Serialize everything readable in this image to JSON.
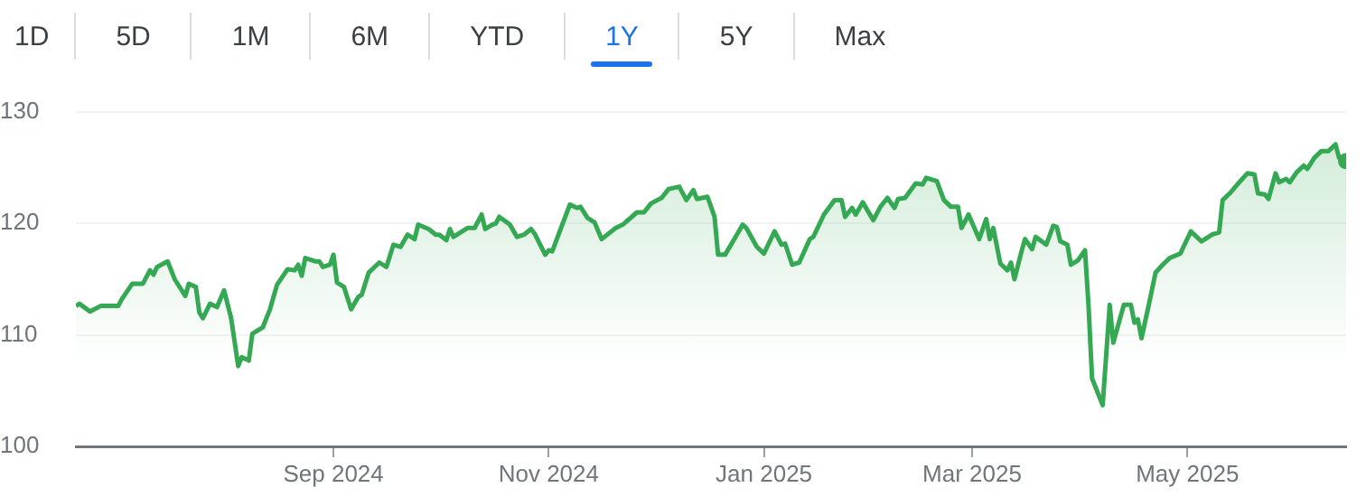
{
  "chart_data": {
    "type": "area",
    "annotations": [
      "1D",
      "5D",
      "1M",
      "6M",
      "YTD",
      "1Y",
      "5Y",
      "Max"
    ],
    "x": [
      "2024-06-20",
      "2024-06-21",
      "2024-06-24",
      "2024-06-27",
      "2024-06-30",
      "2024-07-02",
      "2024-07-03",
      "2024-07-06",
      "2024-07-09",
      "2024-07-11",
      "2024-07-12",
      "2024-07-13",
      "2024-07-16",
      "2024-07-18",
      "2024-07-21",
      "2024-07-22",
      "2024-07-24",
      "2024-07-25",
      "2024-07-26",
      "2024-07-28",
      "2024-07-30",
      "2024-08-01",
      "2024-08-03",
      "2024-08-05",
      "2024-08-06",
      "2024-08-08",
      "2024-08-09",
      "2024-08-12",
      "2024-08-14",
      "2024-08-16",
      "2024-08-19",
      "2024-08-21",
      "2024-08-22",
      "2024-08-23",
      "2024-08-24",
      "2024-08-27",
      "2024-08-28",
      "2024-08-29",
      "2024-08-31",
      "2024-09-01",
      "2024-09-02",
      "2024-09-04",
      "2024-09-06",
      "2024-09-08",
      "2024-09-09",
      "2024-09-11",
      "2024-09-14",
      "2024-09-16",
      "2024-09-18",
      "2024-09-20",
      "2024-09-22",
      "2024-09-24",
      "2024-09-25",
      "2024-09-28",
      "2024-09-30",
      "2024-10-01",
      "2024-10-03",
      "2024-10-04",
      "2024-10-05",
      "2024-10-09",
      "2024-10-11",
      "2024-10-13",
      "2024-10-14",
      "2024-10-16",
      "2024-10-17",
      "2024-10-18",
      "2024-10-21",
      "2024-10-23",
      "2024-10-25",
      "2024-10-27",
      "2024-10-28",
      "2024-10-31",
      "2024-11-01",
      "2024-11-02",
      "2024-11-07",
      "2024-11-09",
      "2024-11-10",
      "2024-11-12",
      "2024-11-14",
      "2024-11-16",
      "2024-11-20",
      "2024-11-22",
      "2024-11-26",
      "2024-11-28",
      "2024-11-30",
      "2024-12-03",
      "2024-12-05",
      "2024-12-08",
      "2024-12-10",
      "2024-12-12",
      "2024-12-13",
      "2024-12-16",
      "2024-12-18",
      "2024-12-19",
      "2024-12-21",
      "2024-12-26",
      "2024-12-27",
      "2024-12-30",
      "2025-01-01",
      "2025-01-04",
      "2025-01-06",
      "2025-01-07",
      "2025-01-09",
      "2025-01-11",
      "2025-01-14",
      "2025-01-15",
      "2025-01-18",
      "2025-01-21",
      "2025-01-23",
      "2025-01-24",
      "2025-01-26",
      "2025-01-27",
      "2025-01-29",
      "2025-02-01",
      "2025-02-03",
      "2025-02-05",
      "2025-02-07",
      "2025-02-08",
      "2025-02-10",
      "2025-02-13",
      "2025-02-15",
      "2025-02-16",
      "2025-02-19",
      "2025-02-21",
      "2025-02-23",
      "2025-02-25",
      "2025-02-26",
      "2025-02-28",
      "2025-03-03",
      "2025-03-05",
      "2025-03-06",
      "2025-03-07",
      "2025-03-09",
      "2025-03-11",
      "2025-03-12",
      "2025-03-13",
      "2025-03-15",
      "2025-03-16",
      "2025-03-18",
      "2025-03-19",
      "2025-03-22",
      "2025-03-24",
      "2025-03-25",
      "2025-03-26",
      "2025-03-28",
      "2025-03-29",
      "2025-03-31",
      "2025-04-02",
      "2025-04-03",
      "2025-04-04",
      "2025-04-07",
      "2025-04-09",
      "2025-04-10",
      "2025-04-13",
      "2025-04-15",
      "2025-04-16",
      "2025-04-17",
      "2025-04-18",
      "2025-04-20",
      "2025-04-22",
      "2025-04-24",
      "2025-04-26",
      "2025-04-29",
      "2025-05-02",
      "2025-05-05",
      "2025-05-08",
      "2025-05-10",
      "2025-05-11",
      "2025-05-13",
      "2025-05-16",
      "2025-05-18",
      "2025-05-20",
      "2025-05-21",
      "2025-05-23",
      "2025-05-24",
      "2025-05-26",
      "2025-05-27",
      "2025-05-29",
      "2025-05-30",
      "2025-06-01",
      "2025-06-03",
      "2025-06-04",
      "2025-06-06",
      "2025-06-08",
      "2025-06-10",
      "2025-06-12",
      "2025-06-13",
      "2025-06-15"
    ],
    "series": [
      {
        "color": "#34a853",
        "values": [
          112.6,
          112.8,
          112.1,
          112.6,
          112.6,
          112.6,
          113.2,
          114.6,
          114.6,
          115.8,
          115.4,
          116.1,
          116.6,
          115.0,
          113.5,
          114.6,
          114.3,
          112.0,
          111.5,
          112.8,
          112.5,
          114.0,
          111.5,
          107.2,
          108.0,
          107.7,
          110.1,
          110.7,
          112.3,
          114.5,
          115.9,
          115.8,
          116.3,
          115.3,
          116.9,
          116.6,
          116.6,
          116.1,
          116.3,
          117.2,
          114.7,
          114.3,
          112.3,
          113.4,
          113.6,
          115.6,
          116.5,
          116.1,
          118.1,
          117.9,
          119.0,
          118.6,
          119.9,
          119.5,
          119.0,
          119.0,
          118.5,
          119.5,
          118.8,
          119.6,
          119.6,
          120.8,
          119.5,
          119.9,
          120.0,
          120.6,
          119.9,
          118.8,
          119.0,
          119.5,
          119.1,
          117.2,
          117.6,
          117.5,
          121.7,
          121.4,
          121.5,
          120.5,
          120.1,
          118.6,
          119.6,
          119.9,
          121.0,
          121.0,
          121.8,
          122.3,
          123.1,
          123.3,
          122.1,
          123.0,
          122.2,
          122.4,
          120.6,
          117.2,
          117.2,
          119.9,
          119.6,
          117.9,
          117.3,
          119.3,
          118.1,
          118.2,
          116.3,
          116.5,
          118.6,
          118.8,
          120.8,
          122.1,
          122.1,
          120.6,
          121.4,
          120.8,
          121.9,
          120.3,
          121.5,
          122.3,
          121.4,
          122.2,
          122.3,
          123.6,
          123.5,
          124.1,
          123.8,
          122.1,
          121.5,
          121.5,
          119.6,
          120.8,
          118.6,
          120.4,
          118.6,
          119.6,
          116.4,
          115.8,
          116.5,
          115.0,
          117.5,
          118.6,
          117.7,
          118.8,
          118.1,
          119.8,
          119.7,
          118.4,
          118.1,
          116.3,
          116.7,
          117.6,
          112.6,
          106.1,
          103.7,
          112.7,
          109.3,
          112.7,
          112.7,
          111.1,
          111.4,
          109.7,
          112.6,
          115.6,
          116.3,
          116.9,
          117.3,
          119.3,
          118.4,
          119.0,
          119.2,
          122.1,
          122.7,
          123.8,
          124.5,
          124.4,
          122.7,
          122.6,
          122.2,
          124.5,
          123.7,
          124.0,
          123.7,
          124.6,
          125.2,
          124.9,
          125.9,
          126.5,
          126.5,
          127.1,
          125.9,
          125.6
        ]
      }
    ],
    "xlim": [
      "2024-06-20",
      "2025-06-15"
    ],
    "xticks": [
      {
        "value": "2024-09-01",
        "label": "Sep 2024"
      },
      {
        "value": "2024-11-01",
        "label": "Nov 2024"
      },
      {
        "value": "2025-01-01",
        "label": "Jan 2025"
      },
      {
        "value": "2025-03-01",
        "label": "Mar 2025"
      },
      {
        "value": "2025-05-01",
        "label": "May 2025"
      }
    ],
    "ylim": [
      100,
      130
    ],
    "yticks": [
      100,
      110,
      120,
      130
    ],
    "grid": "y",
    "legend": false
  }
}
